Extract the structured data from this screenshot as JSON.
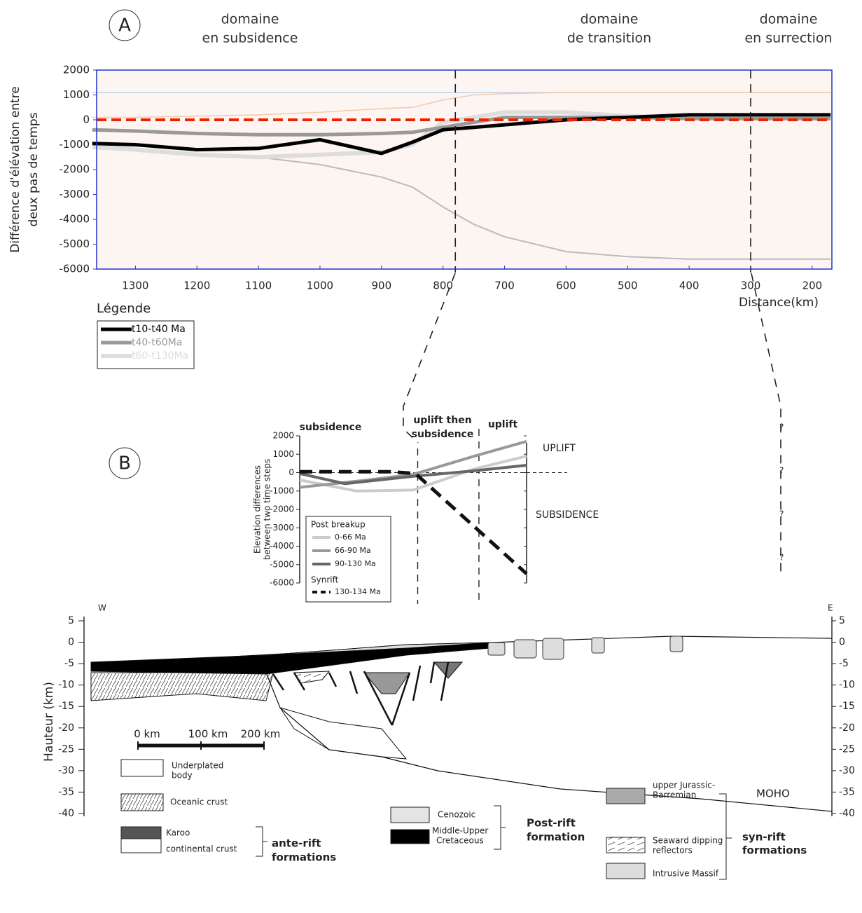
{
  "chart_data": [
    {
      "type": "line",
      "label": "A",
      "headers": [
        [
          "domaine",
          "en subsidence"
        ],
        [
          "domaine",
          "de transition"
        ],
        [
          "domaine",
          "en surrection"
        ]
      ],
      "annotations": [
        "surrection",
        "subsidence"
      ],
      "y_label": [
        "Différence d'élévation entre",
        "deux pas de temps"
      ],
      "x_label": "Distance(km)",
      "legend_title": "Légende",
      "x": [
        1370,
        1300,
        1200,
        1100,
        1000,
        900,
        850,
        800,
        750,
        700,
        600,
        500,
        400,
        300,
        170
      ],
      "xlim": [
        1363,
        168
      ],
      "xticks": [
        1300,
        1200,
        1100,
        1000,
        900,
        800,
        700,
        600,
        500,
        400,
        300,
        200
      ],
      "ylim": [
        -6000,
        2000
      ],
      "yticks": [
        2000,
        1000,
        0,
        -1000,
        -2000,
        -3000,
        -4000,
        -5000,
        -6000
      ],
      "zero_line": {
        "value": 0,
        "color": "#ee2200"
      },
      "divider_lines": [
        780,
        300
      ],
      "series": [
        {
          "name": "t10-t40 Ma",
          "color": "#000000",
          "values": [
            -950,
            -1000,
            -1200,
            -1150,
            -800,
            -1350,
            -900,
            -400,
            -300,
            -200,
            0,
            100,
            200,
            200,
            200
          ]
        },
        {
          "name": "t40-t60Ma",
          "color": "#999999",
          "values": [
            -400,
            -450,
            -550,
            -600,
            -600,
            -550,
            -500,
            -300,
            -100,
            100,
            100,
            100,
            50,
            50,
            50
          ]
        },
        {
          "name": "t60-t130Ma",
          "color": "#dddddd",
          "values": [
            -1100,
            -1200,
            -1400,
            -1500,
            -1400,
            -1300,
            -1000,
            -100,
            100,
            300,
            300,
            150,
            100,
            100,
            100
          ]
        },
        {
          "color": "#bbbbbb",
          "values": [
            -1150,
            -1200,
            -1350,
            -1500,
            -1800,
            -2300,
            -2700,
            -3500,
            -4200,
            -4700,
            -5300,
            -5500,
            -5600,
            -5600,
            -5600
          ]
        },
        {
          "color": "#f4c9a8",
          "values": [
            100,
            100,
            150,
            200,
            300,
            450,
            500,
            800,
            1000,
            1050,
            1100,
            1100,
            1100,
            1100,
            1100
          ]
        },
        {
          "color": "#b9d4f2",
          "values": [
            1100,
            1100,
            1100,
            1100,
            1100,
            1100,
            1100,
            1100,
            1100,
            1100,
            1100,
            1100,
            1100,
            1100,
            1100
          ]
        }
      ]
    },
    {
      "type": "line",
      "label": "B",
      "headers": [
        "subsidence",
        [
          "uplift then",
          "subsidence"
        ],
        "uplift"
      ],
      "annotations": [
        "UPLIFT",
        "SUBSIDENCE"
      ],
      "question_marks": [
        "?",
        "?",
        "?",
        "?"
      ],
      "y_label": [
        "Elevation differences",
        "between two time steps"
      ],
      "legend_groups": [
        "Post breakup",
        "Synrift"
      ],
      "xlim": [
        0,
        10
      ],
      "ylim": [
        -6000,
        2000
      ],
      "yticks": [
        2000,
        1000,
        0,
        -1000,
        -2000,
        -3000,
        -4000,
        -5000,
        -6000
      ],
      "divider_lines": [
        5.2,
        7.9
      ],
      "series": [
        {
          "name": "0-66 Ma",
          "color": "#cccccc",
          "x": [
            0,
            2.5,
            5,
            7.7,
            10
          ],
          "values": [
            -400,
            -1000,
            -950,
            200,
            900
          ]
        },
        {
          "name": "66-90 Ma",
          "color": "#999999",
          "x": [
            0,
            3,
            5,
            7.7,
            10
          ],
          "values": [
            -800,
            -400,
            -100,
            900,
            1700
          ]
        },
        {
          "name": "90-130 Ma",
          "color": "#666666",
          "x": [
            0,
            2,
            5,
            7.7,
            10
          ],
          "values": [
            -50,
            -600,
            -200,
            100,
            400
          ]
        },
        {
          "name": "130-134 Ma",
          "color": "#111111",
          "dash": true,
          "x": [
            0,
            4,
            5.1,
            10
          ],
          "values": [
            50,
            50,
            -50,
            -5500
          ]
        }
      ]
    }
  ],
  "section": {
    "y_label": "Hauteur (km)",
    "west": "W",
    "east": "E",
    "moho": "MOHO",
    "ylim": [
      -40,
      5
    ],
    "yticks": [
      5,
      0,
      -5,
      -10,
      -15,
      -20,
      -25,
      -30,
      -35,
      -40
    ],
    "scale": [
      "0 km",
      "100 km",
      "200 km"
    ],
    "legend": {
      "underplated": [
        "Underplated",
        "body"
      ],
      "oceanic": "Oceanic crust",
      "karoo": "Karoo",
      "continental": "continental crust",
      "ante_rift": [
        "ante-rift",
        "formations"
      ],
      "cenozoic": "Cenozoic",
      "cretaceous": [
        "Middle-Upper",
        "Cretaceous"
      ],
      "post_rift": [
        "Post-rift",
        "formation"
      ],
      "jurassic": [
        "upper Jurassic-",
        "Barremian"
      ],
      "reflectors": [
        "Seaward dipping",
        "reflectors"
      ],
      "intrusive": "Intrusive Massif",
      "syn_rift": [
        "syn-rift",
        "formations"
      ]
    }
  }
}
